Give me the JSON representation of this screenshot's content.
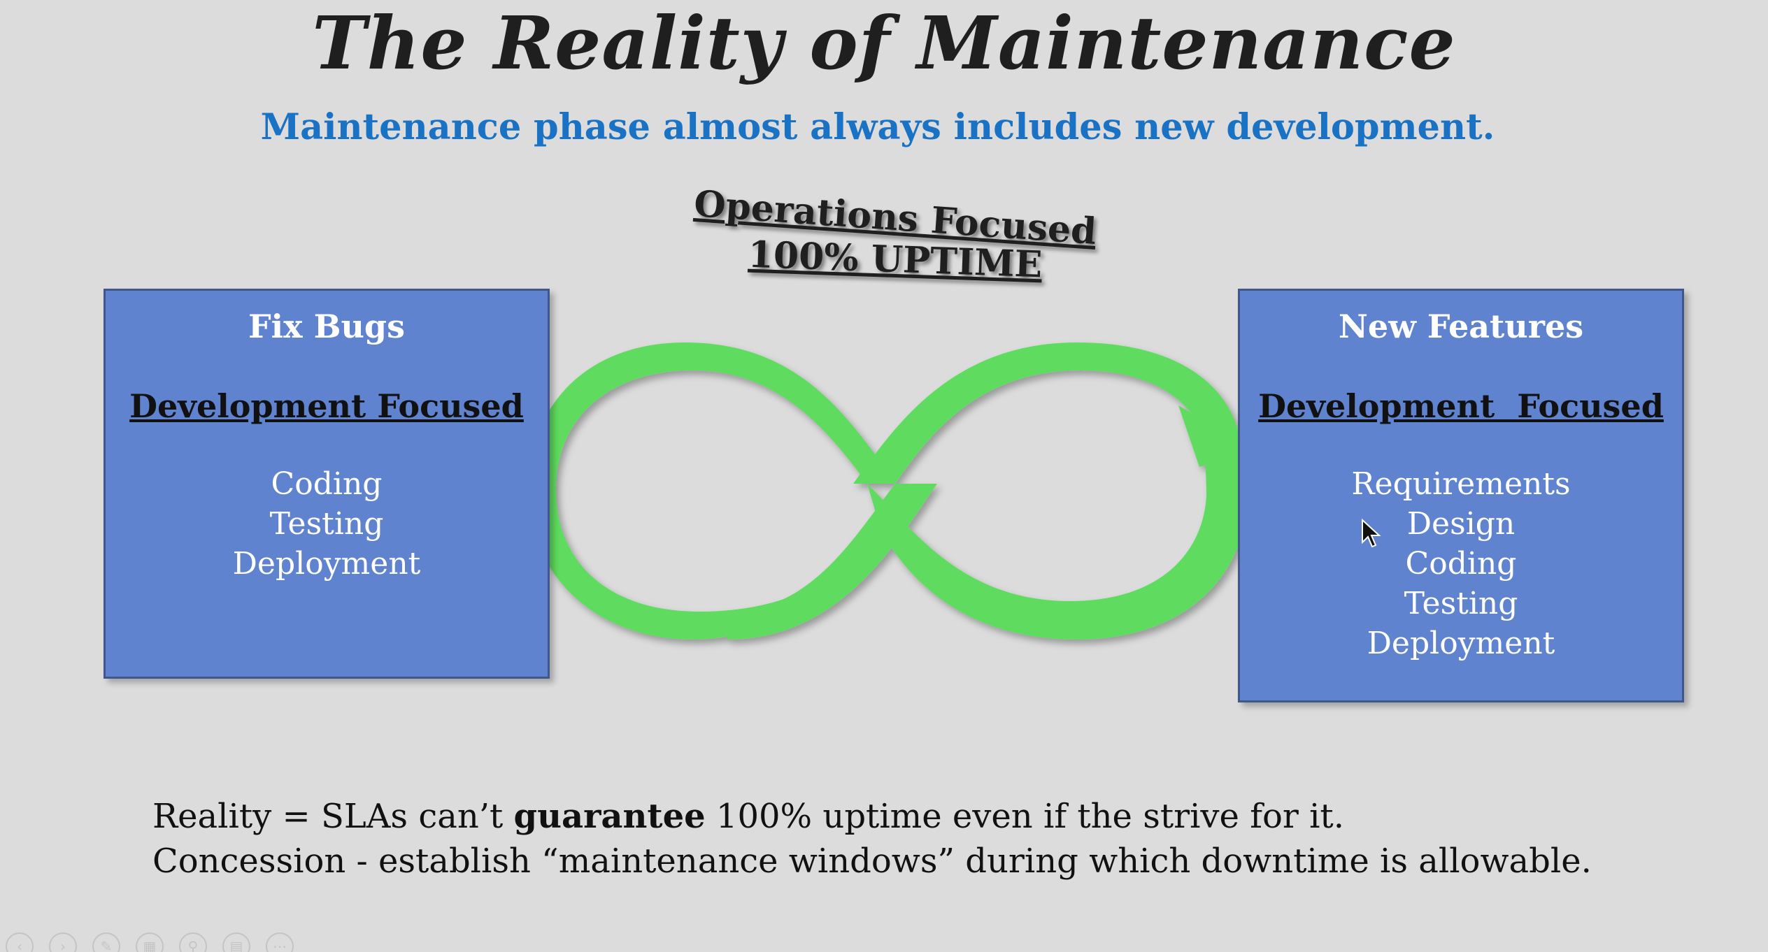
{
  "slide": {
    "title": "The Reality of Maintenance",
    "subtitle": "Maintenance phase almost always includes new development."
  },
  "operations": {
    "line1": "Operations Focused",
    "line2": "100% UPTIME"
  },
  "left_box": {
    "title": "Fix Bugs",
    "focus": "Development Focused",
    "items": [
      "Coding",
      "Testing",
      "Deployment"
    ]
  },
  "right_box": {
    "title": "New Features",
    "focus": "Development  Focused",
    "items": [
      "Requirements",
      "Design",
      "Coding",
      "Testing",
      "Deployment"
    ]
  },
  "notes": {
    "line1_pre": "Reality = SLAs can’t ",
    "line1_bold": "guarantee",
    "line1_post": " 100% uptime even if the strive for it.",
    "line2": "Concession - establish “maintenance windows” during which downtime is allowable."
  },
  "colors": {
    "background": "#dcdcdd",
    "box_fill": "#5f83cf",
    "infinity_green": "#5edc5e",
    "subtitle_blue": "#1a72c4"
  },
  "icons": {
    "infinity": "infinity-loop-arrow-icon",
    "cursor": "mouse-pointer-icon"
  }
}
